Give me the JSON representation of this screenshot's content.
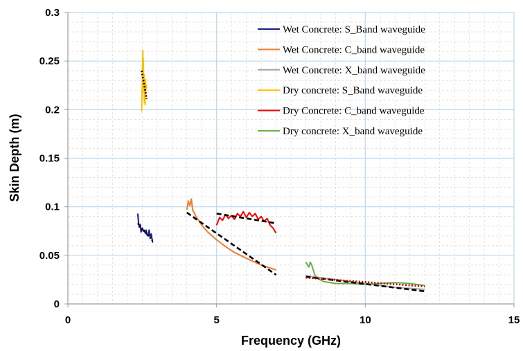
{
  "chart_data": {
    "type": "line",
    "title": "",
    "xlabel": "Frequency (GHz)",
    "ylabel": "Skin Depth (m)",
    "xlim": [
      0,
      15
    ],
    "ylim": [
      0,
      0.3
    ],
    "x_ticks": [
      0,
      5,
      10,
      15
    ],
    "y_ticks": [
      "0",
      "0.05",
      "0.1",
      "0.15",
      "0.2",
      "0.25",
      "0.3"
    ],
    "y_tick_values": [
      0,
      0.05,
      0.1,
      0.15,
      0.2,
      0.25,
      0.3
    ],
    "grid": "major solid light blue, minor dashed light gray",
    "legend_position": "top-right",
    "series": [
      {
        "name": "Wet Concrete: S_Band waveguide",
        "color": "#1a1a8c",
        "x": [
          2.35,
          2.38,
          2.4,
          2.43,
          2.46,
          2.5,
          2.53,
          2.56,
          2.6,
          2.63,
          2.66,
          2.7,
          2.73,
          2.76,
          2.8,
          2.85
        ],
        "y": [
          0.093,
          0.082,
          0.079,
          0.082,
          0.074,
          0.078,
          0.075,
          0.076,
          0.073,
          0.076,
          0.071,
          0.07,
          0.076,
          0.069,
          0.072,
          0.063
        ]
      },
      {
        "name": "Wet Concrete: C_band waveguide",
        "color": "#ed7d31",
        "x": [
          4.0,
          4.05,
          4.1,
          4.15,
          4.2,
          4.25,
          4.3,
          4.4,
          4.5,
          4.7,
          5.0,
          5.3,
          5.6,
          6.0,
          6.5,
          7.0
        ],
        "y": [
          0.097,
          0.106,
          0.101,
          0.108,
          0.096,
          0.094,
          0.09,
          0.086,
          0.081,
          0.074,
          0.066,
          0.059,
          0.053,
          0.047,
          0.04,
          0.035
        ]
      },
      {
        "name": "Wet Concrete: X_band waveguide",
        "color": "#a6a6a6",
        "x": [
          8.0,
          8.5,
          9.0,
          9.5,
          10.0,
          10.5,
          11.0,
          11.5,
          12.0
        ],
        "y": [
          0.029,
          0.027,
          0.025,
          0.023,
          0.021,
          0.019,
          0.017,
          0.016,
          0.015
        ]
      },
      {
        "name": "Dry concrete: S_Band waveguide",
        "color": "#ffc000",
        "x": [
          2.48,
          2.5,
          2.51,
          2.52,
          2.53,
          2.54,
          2.55,
          2.56,
          2.57,
          2.58,
          2.59,
          2.6,
          2.61,
          2.62,
          2.63,
          2.65
        ],
        "y": [
          0.198,
          0.226,
          0.244,
          0.261,
          0.24,
          0.252,
          0.218,
          0.236,
          0.207,
          0.229,
          0.223,
          0.205,
          0.231,
          0.216,
          0.226,
          0.222
        ]
      },
      {
        "name": "Dry Concrete: C_band waveguide",
        "color": "#ff0000",
        "x": [
          5.0,
          5.1,
          5.2,
          5.3,
          5.4,
          5.5,
          5.6,
          5.7,
          5.8,
          5.9,
          6.0,
          6.1,
          6.2,
          6.3,
          6.4,
          6.5,
          6.6,
          6.7,
          6.8,
          6.9,
          7.0
        ],
        "y": [
          0.081,
          0.089,
          0.086,
          0.092,
          0.088,
          0.091,
          0.087,
          0.093,
          0.09,
          0.095,
          0.089,
          0.094,
          0.09,
          0.093,
          0.087,
          0.09,
          0.085,
          0.088,
          0.081,
          0.078,
          0.073
        ]
      },
      {
        "name": "Dry concrete: X_band waveguide",
        "color": "#70ad47",
        "x": [
          8.0,
          8.1,
          8.15,
          8.2,
          8.3,
          8.4,
          8.6,
          9.0,
          9.5,
          10.0,
          10.5,
          11.0,
          11.5,
          12.0
        ],
        "y": [
          0.043,
          0.038,
          0.043,
          0.04,
          0.03,
          0.026,
          0.023,
          0.021,
          0.021,
          0.02,
          0.021,
          0.022,
          0.021,
          0.019
        ]
      }
    ],
    "trendlines": [
      {
        "series": "Wet Concrete: S_Band waveguide",
        "color": "#000000",
        "style": "dotted",
        "x": [
          2.35,
          2.85
        ],
        "y": [
          0.083,
          0.065
        ]
      },
      {
        "series": "Wet Concrete: C_band waveguide",
        "color": "#000000",
        "style": "dashed",
        "x": [
          4.0,
          7.0
        ],
        "y": [
          0.094,
          0.03
        ]
      },
      {
        "series": "Wet Concrete: X_band waveguide",
        "color": "#000000",
        "style": "dashed",
        "x": [
          8.0,
          12.0
        ],
        "y": [
          0.028,
          0.013
        ]
      },
      {
        "series": "Dry concrete: S_Band waveguide",
        "color": "#000000",
        "style": "dotted",
        "x": [
          2.48,
          2.65
        ],
        "y": [
          0.24,
          0.211
        ]
      },
      {
        "series": "Dry Concrete: C_band waveguide",
        "color": "#000000",
        "style": "dashed",
        "x": [
          5.0,
          7.0
        ],
        "y": [
          0.093,
          0.083
        ]
      },
      {
        "series": "Dry concrete: X_band waveguide",
        "color": "#c00000",
        "style": "dotted",
        "x": [
          8.0,
          12.0
        ],
        "y": [
          0.027,
          0.018
        ]
      }
    ]
  }
}
